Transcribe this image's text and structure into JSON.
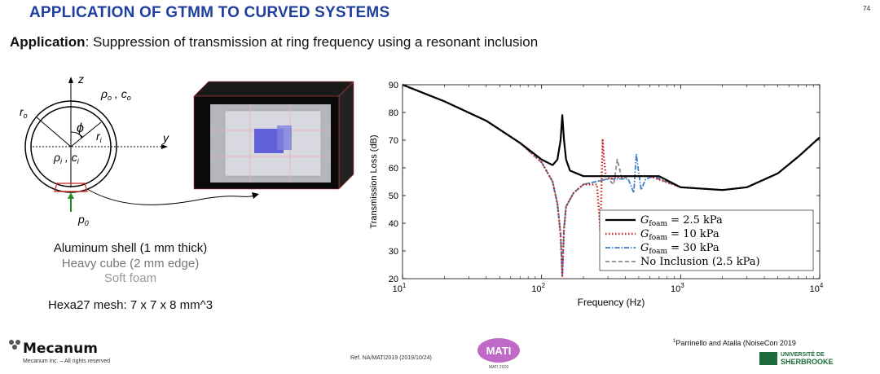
{
  "slide": {
    "title": "APPLICATION OF GTMM TO CURVED SYSTEMS",
    "page_number": "74",
    "subtitle_bold": "Application",
    "subtitle_rest": ": Suppression of transmission at ring frequency using a resonant inclusion"
  },
  "schematic": {
    "z": "z",
    "y": "y",
    "ro": "r",
    "ro_sub": "o",
    "ri": "r",
    "ri_sub": "i",
    "phi": "ϕ",
    "outer_medium": "ρ",
    "outer_medium_sub": "o",
    "outer_sep": " , c",
    "outer_c_sub": "o",
    "inner_medium": "ρ",
    "inner_medium_sub": "i",
    "inner_sep": " , c",
    "inner_c_sub": "i",
    "p0": "p",
    "p0_sub": "0"
  },
  "description": {
    "line1": "Aluminum shell (1 mm thick)",
    "line2": "Heavy cube (2 mm edge)",
    "line3": "Soft foam",
    "mesh": "Hexa27 mesh: 7 x 7 x 8 mm^3"
  },
  "colors": {
    "title": "#1f3fa0",
    "black": "#000000",
    "red": "#d02020",
    "blue": "#3a7fc8",
    "gray": "#888888"
  },
  "chart_data": {
    "type": "line",
    "xscale": "log",
    "xlabel": "Frequency (Hz)",
    "ylabel": "Transmission Loss (dB)",
    "xlim": [
      10,
      10000
    ],
    "ylim": [
      20,
      90
    ],
    "yticks": [
      "20",
      "30",
      "40",
      "50",
      "60",
      "70",
      "80",
      "90"
    ],
    "xtick_labels": [
      {
        "base": "10",
        "exp": "1"
      },
      {
        "base": "10",
        "exp": "2"
      },
      {
        "base": "10",
        "exp": "3"
      },
      {
        "base": "10",
        "exp": "4"
      }
    ],
    "legend_location": "lower-right",
    "series": [
      {
        "name": "G_foam = 2.5 kPa",
        "label_main": "G",
        "label_sub": "foam",
        "label_rest": " = 2.5 kPa",
        "style": "solid",
        "color": "#000000",
        "x": [
          10,
          20,
          40,
          70,
          100,
          120,
          130,
          137,
          141,
          145,
          150,
          160,
          200,
          300,
          500,
          700,
          1000,
          2000,
          3000,
          5000,
          7000,
          10000
        ],
        "y": [
          90,
          84,
          77,
          69,
          63,
          61,
          63,
          70,
          79,
          70,
          63,
          59,
          57,
          57,
          57,
          57,
          53,
          52,
          53,
          58,
          64,
          71
        ]
      },
      {
        "name": "G_foam = 10 kPa",
        "label_main": "G",
        "label_sub": "foam",
        "label_rest": " = 10 kPa",
        "style": "dotted",
        "color": "#d02020",
        "x": [
          10,
          20,
          40,
          70,
          100,
          120,
          130,
          137,
          141,
          145,
          150,
          170,
          200,
          250,
          265,
          275,
          280,
          290,
          310,
          400,
          600,
          1000,
          2000,
          3000,
          5000,
          7000,
          10000
        ],
        "y": [
          90,
          84,
          77,
          69,
          62,
          55,
          47,
          36,
          21,
          38,
          46,
          51,
          54,
          54,
          37,
          70,
          64,
          57,
          56,
          57,
          57,
          53,
          52,
          53,
          58,
          64,
          71
        ]
      },
      {
        "name": "G_foam = 30 kPa",
        "label_main": "G",
        "label_sub": "foam",
        "label_rest": " = 30 kPa",
        "style": "dashdot",
        "color": "#3a7fc8",
        "x": [
          10,
          20,
          40,
          70,
          100,
          120,
          130,
          137,
          141,
          145,
          150,
          170,
          200,
          300,
          420,
          460,
          480,
          500,
          520,
          560,
          650,
          1000,
          2000,
          3000,
          5000,
          7000,
          10000
        ],
        "y": [
          90,
          84,
          77,
          69,
          62,
          55,
          47,
          36,
          21,
          38,
          46,
          51,
          54,
          56,
          56,
          51,
          65,
          58,
          52,
          56,
          57,
          53,
          52,
          53,
          58,
          64,
          71
        ]
      },
      {
        "name": "No Inclusion (2.5 kPa)",
        "label_main": "No Inclusion (2.5 kPa)",
        "label_sub": "",
        "label_rest": "",
        "style": "dashed",
        "color": "#888888",
        "x": [
          10,
          20,
          40,
          70,
          100,
          120,
          130,
          137,
          141,
          145,
          150,
          170,
          200,
          300,
          330,
          350,
          380,
          420,
          600,
          1000,
          2000,
          3000,
          5000,
          7000,
          10000
        ],
        "y": [
          90,
          84,
          77,
          69,
          62,
          55,
          47,
          36,
          21,
          38,
          46,
          51,
          54,
          56,
          54,
          63,
          56,
          57,
          57,
          53,
          52,
          53,
          58,
          64,
          71
        ]
      }
    ]
  },
  "footer": {
    "logo": "Mecanum",
    "rights": "Mecanum inc. – All rights reserved",
    "ref": "Ref. NA/MATI2019  (2019/10/24)",
    "mati_logo": "MATI",
    "mati_year": "MATI 2019",
    "citation_sup": "1",
    "citation": "Parrinello and Atalla (NoiseCon 2019",
    "univ_line1": "UNIVERSITÉ DE",
    "univ_line2": "SHERBROOKE"
  }
}
